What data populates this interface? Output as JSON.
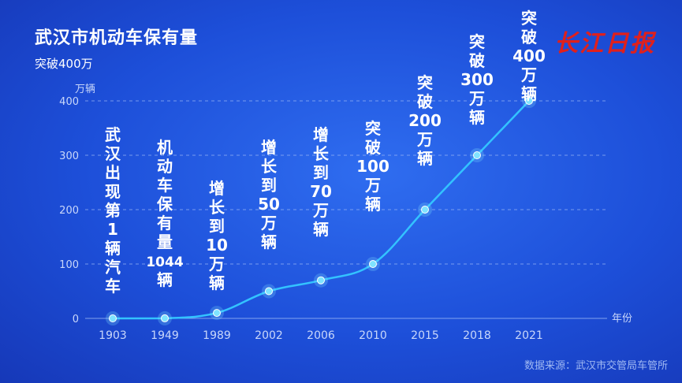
{
  "header": {
    "title": "武汉市机动车保有量",
    "subtitle": "突破400万",
    "logo_text": "长江日报",
    "source": "数据来源：武汉市交管局车管所"
  },
  "colors": {
    "background": "#1d4fd9",
    "line": "#33c3ff",
    "point": "#7fe3ff",
    "grid": "#9cb8f5",
    "text": "#ffffff",
    "logo": "#e0201c"
  },
  "chart_data": {
    "type": "line",
    "title": "武汉市机动车保有量",
    "subtitle": "突破400万",
    "ylabel": "万辆",
    "xlabel": "年份",
    "ylim": [
      0,
      400
    ],
    "yticks": [
      "0",
      "100",
      "200",
      "300",
      "400"
    ],
    "grid": true,
    "categories": [
      "1903",
      "1949",
      "1989",
      "2002",
      "2006",
      "2010",
      "2015",
      "2018",
      "2021"
    ],
    "series": [
      {
        "values": [
          0,
          0.1044,
          10,
          50,
          70,
          100,
          200,
          300,
          400
        ]
      }
    ],
    "annotations": [
      "武汉出现第1辆汽车",
      "机动车保有量 1044 辆",
      "增长到10万辆",
      "增长到50万辆",
      "增长到70万辆",
      "突破100万辆",
      "突破200万辆",
      "突破300万辆",
      "突破400万辆"
    ]
  }
}
